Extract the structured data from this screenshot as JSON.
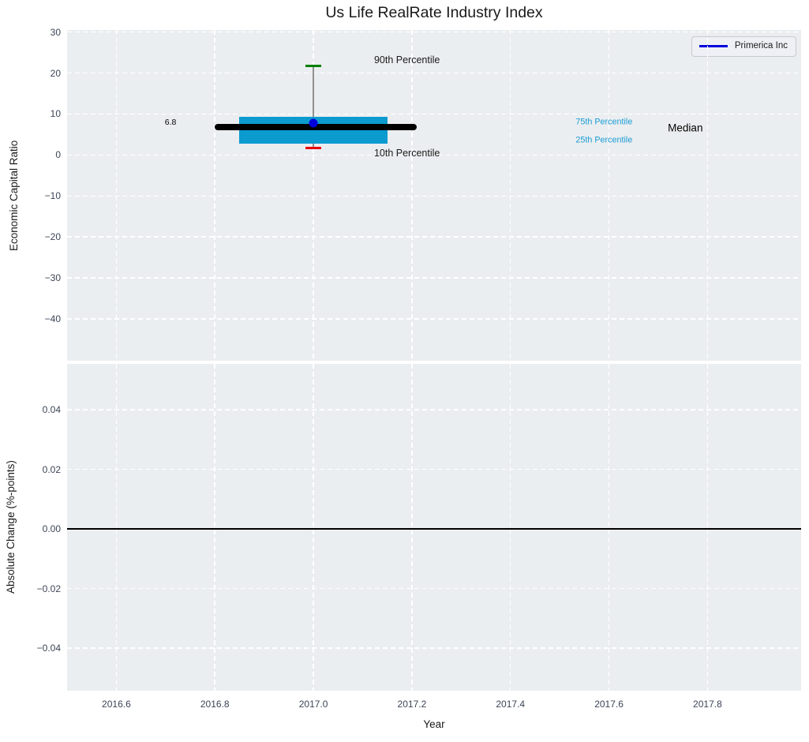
{
  "chart_data": [
    {
      "type": "boxplot",
      "title": "Us Life RealRate Industry Index",
      "ylabel": "Economic Capital Ratio",
      "xlim": [
        2016.5,
        2017.99
      ],
      "ylim": [
        -50.2,
        30.5
      ],
      "grid": true,
      "legend_position": "upper right",
      "colors": {
        "background": "#ebeef0",
        "grid": "#ffffff",
        "box": "#0c9bcf",
        "median_line": "#000000",
        "whisker": "#909090",
        "p90_cap": "#008000",
        "p10_cap": "#e8000b",
        "company_marker": "#0000dd",
        "percentile_text": "#1b9cd5",
        "tick_text": "#3b4556"
      },
      "yticks": [
        {
          "v": 30,
          "label": "30"
        },
        {
          "v": 20,
          "label": "20"
        },
        {
          "v": 10,
          "label": "10"
        },
        {
          "v": 0,
          "label": "0"
        },
        {
          "v": -10,
          "label": "−10"
        },
        {
          "v": -20,
          "label": "−20"
        },
        {
          "v": -30,
          "label": "−30"
        },
        {
          "v": -40,
          "label": "−40"
        }
      ],
      "box": {
        "x_center": 2017.0,
        "p90": 21.8,
        "p75": 9.3,
        "median": 6.8,
        "p25": 2.7,
        "p10": 1.8,
        "box_x0": 2016.85,
        "box_x1": 2017.15,
        "median_x0": 2016.8,
        "median_x1": 2017.21,
        "cap_half_width": 0.016
      },
      "company_marker": {
        "name": "Primerica Inc",
        "x": 2017.0,
        "value": 7.8
      },
      "legend": {
        "label": "Primerica Inc",
        "line_color": "#0000dd"
      },
      "annotations": [
        {
          "name": "median-value-label",
          "text": "6.8",
          "x": 2016.71,
          "y": 8.0,
          "color": "#000000",
          "size": 10.5
        },
        {
          "name": "p90-label",
          "text": "90th Percentile",
          "x": 2017.19,
          "y": 23.2,
          "color": "#1a1a1a",
          "size": 12.5
        },
        {
          "name": "p10-label",
          "text": "10th Percentile",
          "x": 2017.19,
          "y": 0.5,
          "color": "#1a1a1a",
          "size": 12.5
        },
        {
          "name": "p75-label",
          "text": "75th Percentile",
          "x": 2017.59,
          "y": 7.9,
          "color": "#1b9cd5",
          "size": 10.8
        },
        {
          "name": "p25-label",
          "text": "25th Percentile",
          "x": 2017.59,
          "y": 3.6,
          "color": "#1b9cd5",
          "size": 10.8
        },
        {
          "name": "median-label",
          "text": "Median",
          "x": 2017.755,
          "y": 6.7,
          "color": "#000000",
          "size": 13.5
        }
      ]
    },
    {
      "type": "line",
      "ylabel": "Absolute Change (%-points)",
      "xlabel": "Year",
      "xlim": [
        2016.5,
        2017.99
      ],
      "ylim": [
        -0.0543,
        0.0554
      ],
      "grid": true,
      "series": [],
      "zero_line": {
        "y": 0.0,
        "color": "#000000"
      },
      "yticks": [
        {
          "v": 0.04,
          "label": "0.04"
        },
        {
          "v": 0.02,
          "label": "0.02"
        },
        {
          "v": 0.0,
          "label": "0.00"
        },
        {
          "v": -0.02,
          "label": "−0.02"
        },
        {
          "v": -0.04,
          "label": "−0.04"
        }
      ],
      "xticks": [
        {
          "v": 2016.6,
          "label": "2016.6"
        },
        {
          "v": 2016.8,
          "label": "2016.8"
        },
        {
          "v": 2017.0,
          "label": "2017.0"
        },
        {
          "v": 2017.2,
          "label": "2017.2"
        },
        {
          "v": 2017.4,
          "label": "2017.4"
        },
        {
          "v": 2017.6,
          "label": "2017.6"
        },
        {
          "v": 2017.8,
          "label": "2017.8"
        }
      ]
    }
  ]
}
